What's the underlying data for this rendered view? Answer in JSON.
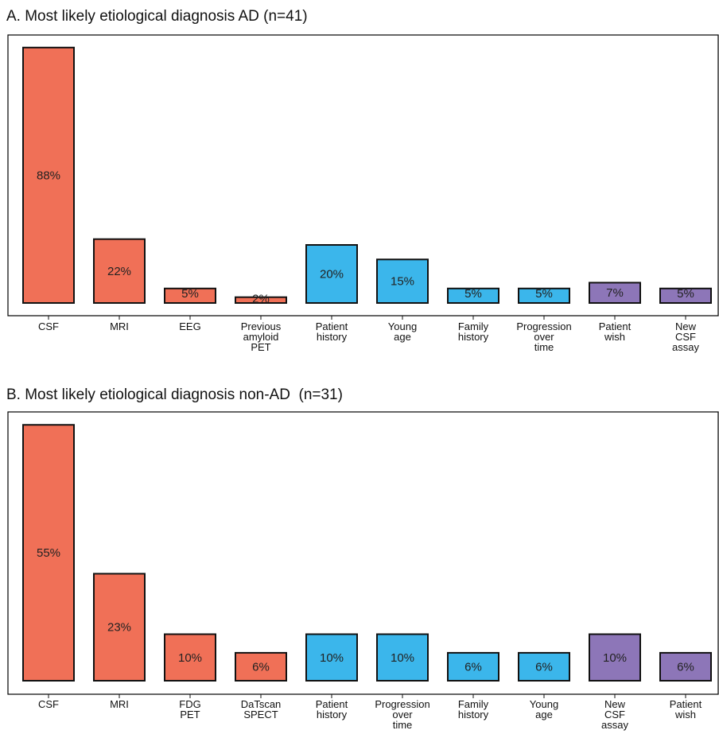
{
  "colors": {
    "test": "#F07057",
    "clinical": "#3BB6EB",
    "patient": "#8D76B8",
    "frame": "#000000"
  },
  "chart_data": [
    {
      "type": "bar",
      "title": "A. Most likely etiological diagnosis AD (n=41)",
      "xlabel": "",
      "ylabel": "",
      "ylim": [
        0,
        100
      ],
      "grid": false,
      "categories": [
        [
          "CSF"
        ],
        [
          "MRI"
        ],
        [
          "EEG"
        ],
        [
          "Previous",
          "amyloid",
          "PET"
        ],
        [
          "Patient",
          "history"
        ],
        [
          "Young",
          "age"
        ],
        [
          "Family",
          "history"
        ],
        [
          "Progression",
          "over",
          "time"
        ],
        [
          "Patient",
          "wish"
        ],
        [
          "New",
          "CSF",
          "assay"
        ]
      ],
      "values": [
        88,
        22,
        5,
        2,
        20,
        15,
        5,
        5,
        7,
        5
      ],
      "value_labels": [
        "88%",
        "22%",
        "5%",
        "2%",
        "20%",
        "15%",
        "5%",
        "5%",
        "7%",
        "5%"
      ],
      "groups": [
        "test",
        "test",
        "test",
        "test",
        "clinical",
        "clinical",
        "clinical",
        "clinical",
        "patient",
        "patient"
      ]
    },
    {
      "type": "bar",
      "title": "B. Most likely etiological diagnosis non-AD  (n=31)",
      "xlabel": "",
      "ylabel": "",
      "ylim": [
        0,
        60
      ],
      "grid": false,
      "categories": [
        [
          "CSF"
        ],
        [
          "MRI"
        ],
        [
          "FDG",
          "PET"
        ],
        [
          "DaTscan",
          "SPECT"
        ],
        [
          "Patient",
          "history"
        ],
        [
          "Progression",
          "over",
          "time"
        ],
        [
          "Family",
          "history"
        ],
        [
          "Young",
          "age"
        ],
        [
          "New",
          "CSF",
          "assay"
        ],
        [
          "Patient",
          "wish"
        ]
      ],
      "values": [
        55,
        23,
        10,
        6,
        10,
        10,
        6,
        6,
        10,
        6
      ],
      "value_labels": [
        "55%",
        "23%",
        "10%",
        "6%",
        "10%",
        "10%",
        "6%",
        "6%",
        "10%",
        "6%"
      ],
      "groups": [
        "test",
        "test",
        "test",
        "test",
        "clinical",
        "clinical",
        "clinical",
        "clinical",
        "patient",
        "patient"
      ]
    }
  ]
}
